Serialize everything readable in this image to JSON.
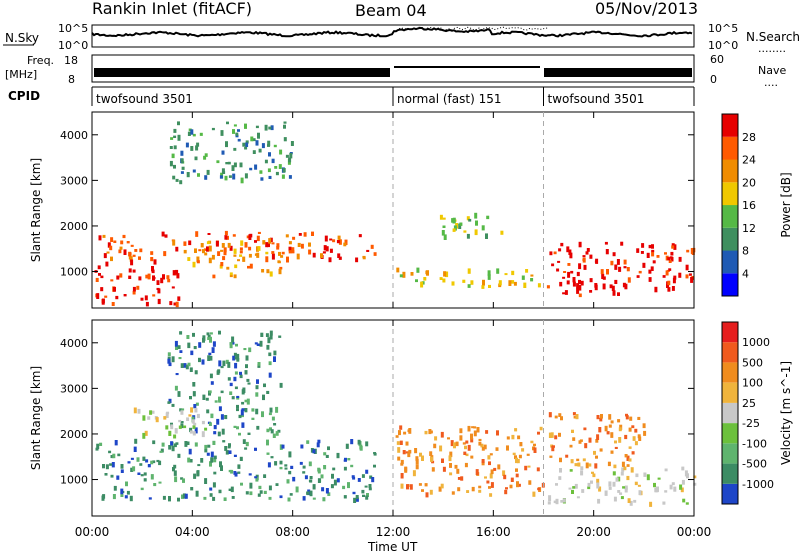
{
  "header": {
    "station": "Rankin Inlet (fitACF)",
    "beam": "Beam 04",
    "date": "05/Nov/2013"
  },
  "top_panels": {
    "nsky_label": "N.Sky",
    "nsearch_label": "N.Search",
    "nsearch_legend": "........",
    "ns_tick_hi": "10^5",
    "ns_tick_lo": "10^0",
    "ns_tick_hi_r": "10^5",
    "ns_tick_lo_r": "10^0",
    "freq_label_1": "Freq.",
    "freq_label_2": "[MHz]",
    "freq_tick_hi": "18",
    "freq_tick_lo": "8",
    "nave_label": "Nave",
    "nave_legend": "....",
    "nave_tick_hi": "60",
    "nave_tick_lo": "0",
    "cpid_label": "CPID"
  },
  "cpid_segments": [
    {
      "label": "twofsound 3501",
      "start": 0,
      "end": 12
    },
    {
      "label": "normal (fast) 151",
      "start": 12,
      "end": 18
    },
    {
      "label": "twofsound 3501",
      "start": 18,
      "end": 24
    }
  ],
  "chart_data": [
    {
      "type": "heatmap",
      "name": "Power",
      "colorbar_label": "Power [dB]",
      "colorbar_ticks": [
        "4",
        "8",
        "12",
        "16",
        "20",
        "24",
        "28"
      ],
      "colors": [
        "#0000ff",
        "#1f5ab4",
        "#3f8f5f",
        "#55b946",
        "#f0c800",
        "#f08c00",
        "#ff5a00",
        "#e60000"
      ],
      "ylabel": "Slant Range [km]",
      "ytick_labels": [
        "1000",
        "2000",
        "3000",
        "4000"
      ],
      "ylim": [
        200,
        4500
      ],
      "regions": [
        {
          "t": [
            0.1,
            11.3
          ],
          "r": [
            1300,
            1900
          ],
          "level": 6
        },
        {
          "t": [
            0.1,
            3.5
          ],
          "r": [
            300,
            1300
          ],
          "level": 7
        },
        {
          "t": [
            3.8,
            7.5
          ],
          "r": [
            900,
            1700
          ],
          "level": 5
        },
        {
          "t": [
            12.1,
            17.9
          ],
          "r": [
            700,
            1100
          ],
          "level": 4
        },
        {
          "t": [
            18.1,
            24
          ],
          "r": [
            500,
            1700
          ],
          "level": 7
        },
        {
          "t": [
            13.5,
            16.5
          ],
          "r": [
            1800,
            2300
          ],
          "level": 3
        },
        {
          "t": [
            3,
            8
          ],
          "r": [
            3000,
            4300
          ],
          "level": 2
        }
      ]
    },
    {
      "type": "heatmap",
      "name": "Velocity",
      "colorbar_label": "Velocity [m s^-1]",
      "colorbar_ticks": [
        "1000",
        "500",
        "100",
        "25",
        "-25",
        "-100",
        "-500",
        "-1000"
      ],
      "colors": [
        "#1e46c8",
        "#3c8c64",
        "#5fb46e",
        "#6cc03c",
        "#c8c8c8",
        "#f0b43c",
        "#f08c1e",
        "#f05a1e",
        "#e61e1e"
      ],
      "ylabel": "Slant Range [km]",
      "ytick_labels": [
        "1000",
        "2000",
        "3000",
        "4000"
      ],
      "ylim": [
        200,
        4500
      ],
      "regions": [
        {
          "t": [
            0.1,
            11.3
          ],
          "r": [
            600,
            1900
          ],
          "level": 1
        },
        {
          "t": [
            3,
            7.5
          ],
          "r": [
            2000,
            4300
          ],
          "level": 1
        },
        {
          "t": [
            12.1,
            18
          ],
          "r": [
            700,
            2200
          ],
          "level": 6
        },
        {
          "t": [
            18.1,
            24
          ],
          "r": [
            500,
            1300
          ],
          "level": 4
        },
        {
          "t": [
            18.1,
            22
          ],
          "r": [
            1300,
            2500
          ],
          "level": 6
        },
        {
          "t": [
            1.5,
            4.5
          ],
          "r": [
            1900,
            2600
          ],
          "level": 4
        }
      ]
    }
  ],
  "xaxis": {
    "label": "Time UT",
    "ticks": [
      "00:00",
      "04:00",
      "08:00",
      "12:00",
      "16:00",
      "20:00",
      "00:00"
    ],
    "range": [
      0,
      24
    ],
    "dashed_at": [
      12,
      18
    ]
  }
}
